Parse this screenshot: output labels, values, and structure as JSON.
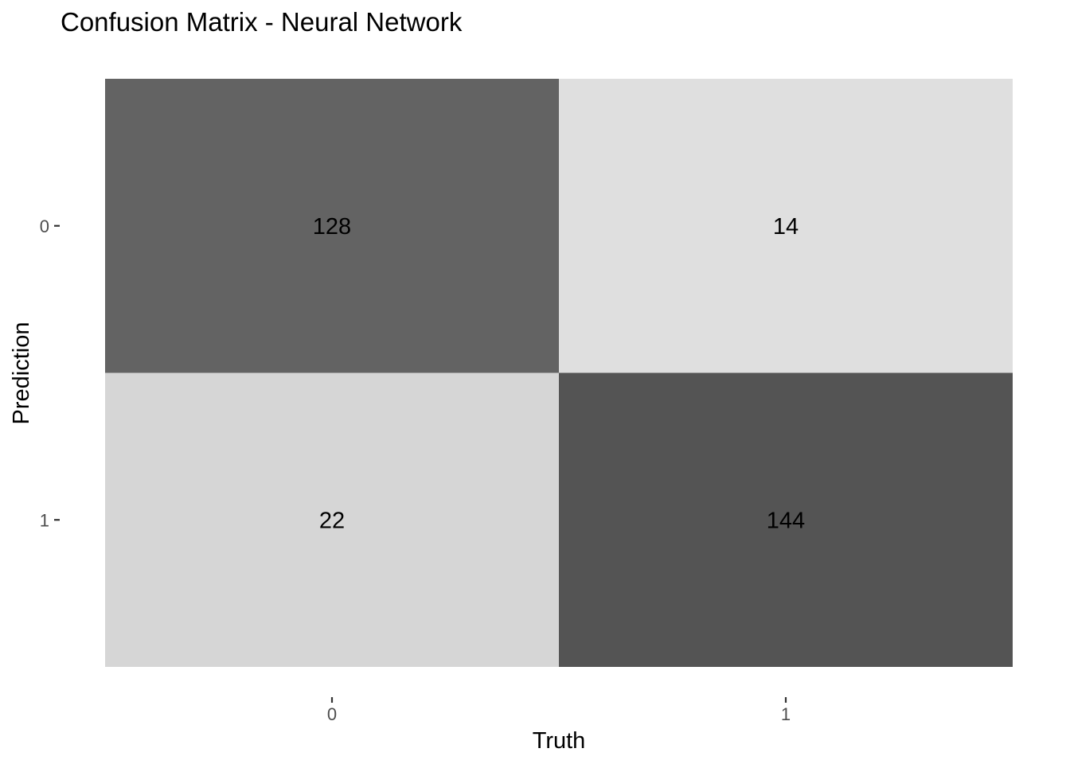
{
  "chart_data": {
    "type": "heatmap",
    "title": "Confusion Matrix - Neural Network",
    "xlabel": "Truth",
    "ylabel": "Prediction",
    "x_categories": [
      "0",
      "1"
    ],
    "y_categories": [
      "0",
      "1"
    ],
    "cells": [
      {
        "truth": "0",
        "prediction": "0",
        "value": 128,
        "label": "128",
        "color": "#636363"
      },
      {
        "truth": "1",
        "prediction": "0",
        "value": 14,
        "label": "14",
        "color": "#dfdfdf"
      },
      {
        "truth": "0",
        "prediction": "1",
        "value": 22,
        "label": "22",
        "color": "#d6d6d6"
      },
      {
        "truth": "1",
        "prediction": "1",
        "value": 144,
        "label": "144",
        "color": "#545454"
      }
    ],
    "color_scale": {
      "low": "#ebebeb",
      "high": "#4a4a4a"
    },
    "grid": false,
    "legend": "none"
  }
}
